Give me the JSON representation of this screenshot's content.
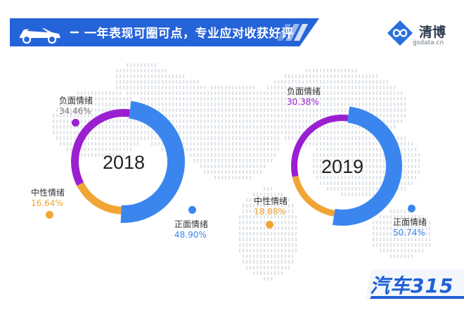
{
  "header": {
    "title": "一年表现可圈可点，专业应对收获好评",
    "icon": "car-icon"
  },
  "logo": {
    "name": "清博",
    "url": "gsdata.cn",
    "icon": "infinity-logo-icon"
  },
  "badge": {
    "text": "汽车315"
  },
  "colors": {
    "positive": "#3b86ee",
    "negative": "#9a1fd1",
    "neutral": "#f0a534",
    "banner": "#2563d8"
  },
  "chart_data": [
    {
      "type": "pie",
      "donut": true,
      "title": "2018",
      "slices": [
        {
          "label": "负面情绪",
          "value": 34.46,
          "display": "34.46%"
        },
        {
          "label": "中性情绪",
          "value": 16.64,
          "display": "16.64%"
        },
        {
          "label": "正面情绪",
          "value": 48.9,
          "display": "48.90%"
        }
      ]
    },
    {
      "type": "pie",
      "donut": true,
      "title": "2019",
      "slices": [
        {
          "label": "负面情绪",
          "value": 30.38,
          "display": "30.38%"
        },
        {
          "label": "中性情绪",
          "value": 18.88,
          "display": "18.88%"
        },
        {
          "label": "正面情绪",
          "value": 50.74,
          "display": "50.74%"
        }
      ]
    }
  ]
}
